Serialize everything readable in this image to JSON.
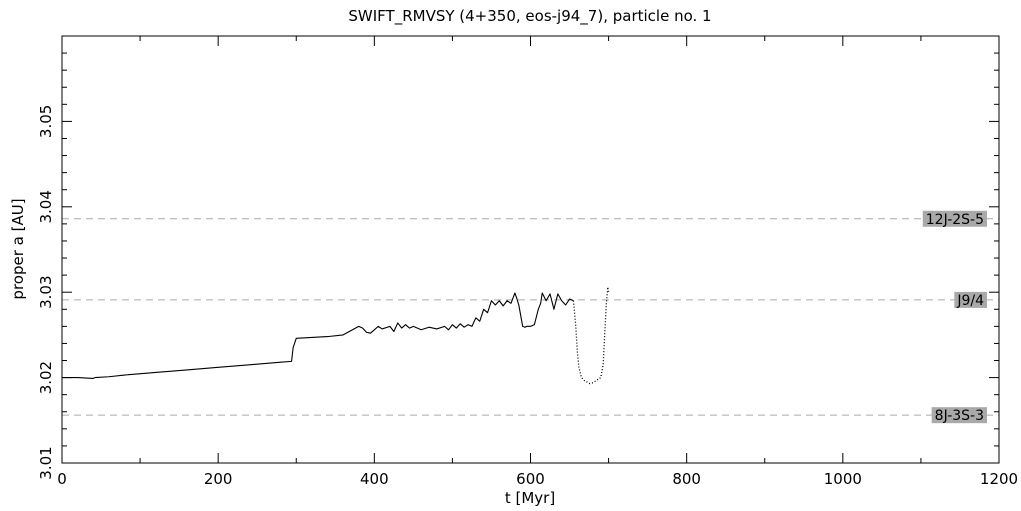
{
  "chart_data": {
    "type": "line",
    "title": "SWIFT_RMVSY (4+350, eos-j94_7), particle no. 1",
    "xlabel": "t [Myr]",
    "ylabel": "proper a [AU]",
    "xlim": [
      0,
      1200
    ],
    "ylim": [
      3.01,
      3.06
    ],
    "x_ticks": [
      0,
      200,
      400,
      600,
      800,
      1000,
      1200
    ],
    "x_tick_labels": [
      "0",
      "200",
      "400",
      "600",
      "800",
      "1000",
      "1200"
    ],
    "y_ticks": [
      3.01,
      3.02,
      3.03,
      3.04,
      3.05
    ],
    "y_tick_labels": [
      "3.01",
      "3.02",
      "3.03",
      "3.04",
      "3.05"
    ],
    "grid": false,
    "series": [
      {
        "style": "solid",
        "x": [
          0,
          20,
          40,
          42,
          60,
          80,
          120,
          160,
          200,
          240,
          280,
          294,
          296,
          300,
          320,
          340,
          360,
          370,
          380,
          385,
          390,
          395,
          400,
          405,
          410,
          420,
          425,
          430,
          435,
          440,
          445,
          450,
          460,
          470,
          480,
          490,
          495,
          500,
          505,
          510,
          515,
          520,
          525,
          530,
          535,
          540,
          545,
          550,
          555,
          560,
          565,
          570,
          575,
          580,
          582,
          585,
          590,
          593,
          595,
          600,
          605,
          610,
          613,
          615,
          620,
          625,
          630,
          635,
          640,
          645,
          650,
          655
        ],
        "y": [
          3.02,
          3.02,
          3.0199,
          3.02,
          3.0201,
          3.0203,
          3.0206,
          3.0209,
          3.0212,
          3.0215,
          3.0218,
          3.0219,
          3.0235,
          3.0246,
          3.0247,
          3.0248,
          3.025,
          3.0255,
          3.026,
          3.0258,
          3.0253,
          3.0252,
          3.0256,
          3.026,
          3.0257,
          3.026,
          3.0254,
          3.0264,
          3.0258,
          3.0262,
          3.0258,
          3.026,
          3.0256,
          3.0259,
          3.0257,
          3.026,
          3.0256,
          3.0262,
          3.0258,
          3.0263,
          3.0259,
          3.0262,
          3.026,
          3.027,
          3.0266,
          3.028,
          3.0276,
          3.029,
          3.0285,
          3.029,
          3.0284,
          3.029,
          3.0287,
          3.0299,
          3.0294,
          3.0285,
          3.026,
          3.0259,
          3.026,
          3.026,
          3.0262,
          3.028,
          3.0287,
          3.0299,
          3.029,
          3.0298,
          3.028,
          3.0298,
          3.029,
          3.0285,
          3.0292,
          3.029
        ]
      },
      {
        "style": "dotted",
        "x": [
          655,
          658,
          660,
          662,
          665,
          668,
          672,
          676,
          680,
          685,
          690,
          693,
          695,
          697,
          699,
          700
        ],
        "y": [
          3.029,
          3.026,
          3.023,
          3.0212,
          3.0201,
          3.0197,
          3.0195,
          3.0193,
          3.0194,
          3.0197,
          3.02,
          3.0215,
          3.025,
          3.0285,
          3.0306,
          3.03
        ]
      }
    ],
    "reference_lines": [
      {
        "y": 3.0386,
        "label": "12J-2S-5"
      },
      {
        "y": 3.0291,
        "label": "J9/4"
      },
      {
        "y": 3.0156,
        "label": "8J-3S-3"
      }
    ],
    "colors": {
      "line": "#000000",
      "reference": "#aaaaaa",
      "label_bg": "#a9a9a9"
    }
  }
}
